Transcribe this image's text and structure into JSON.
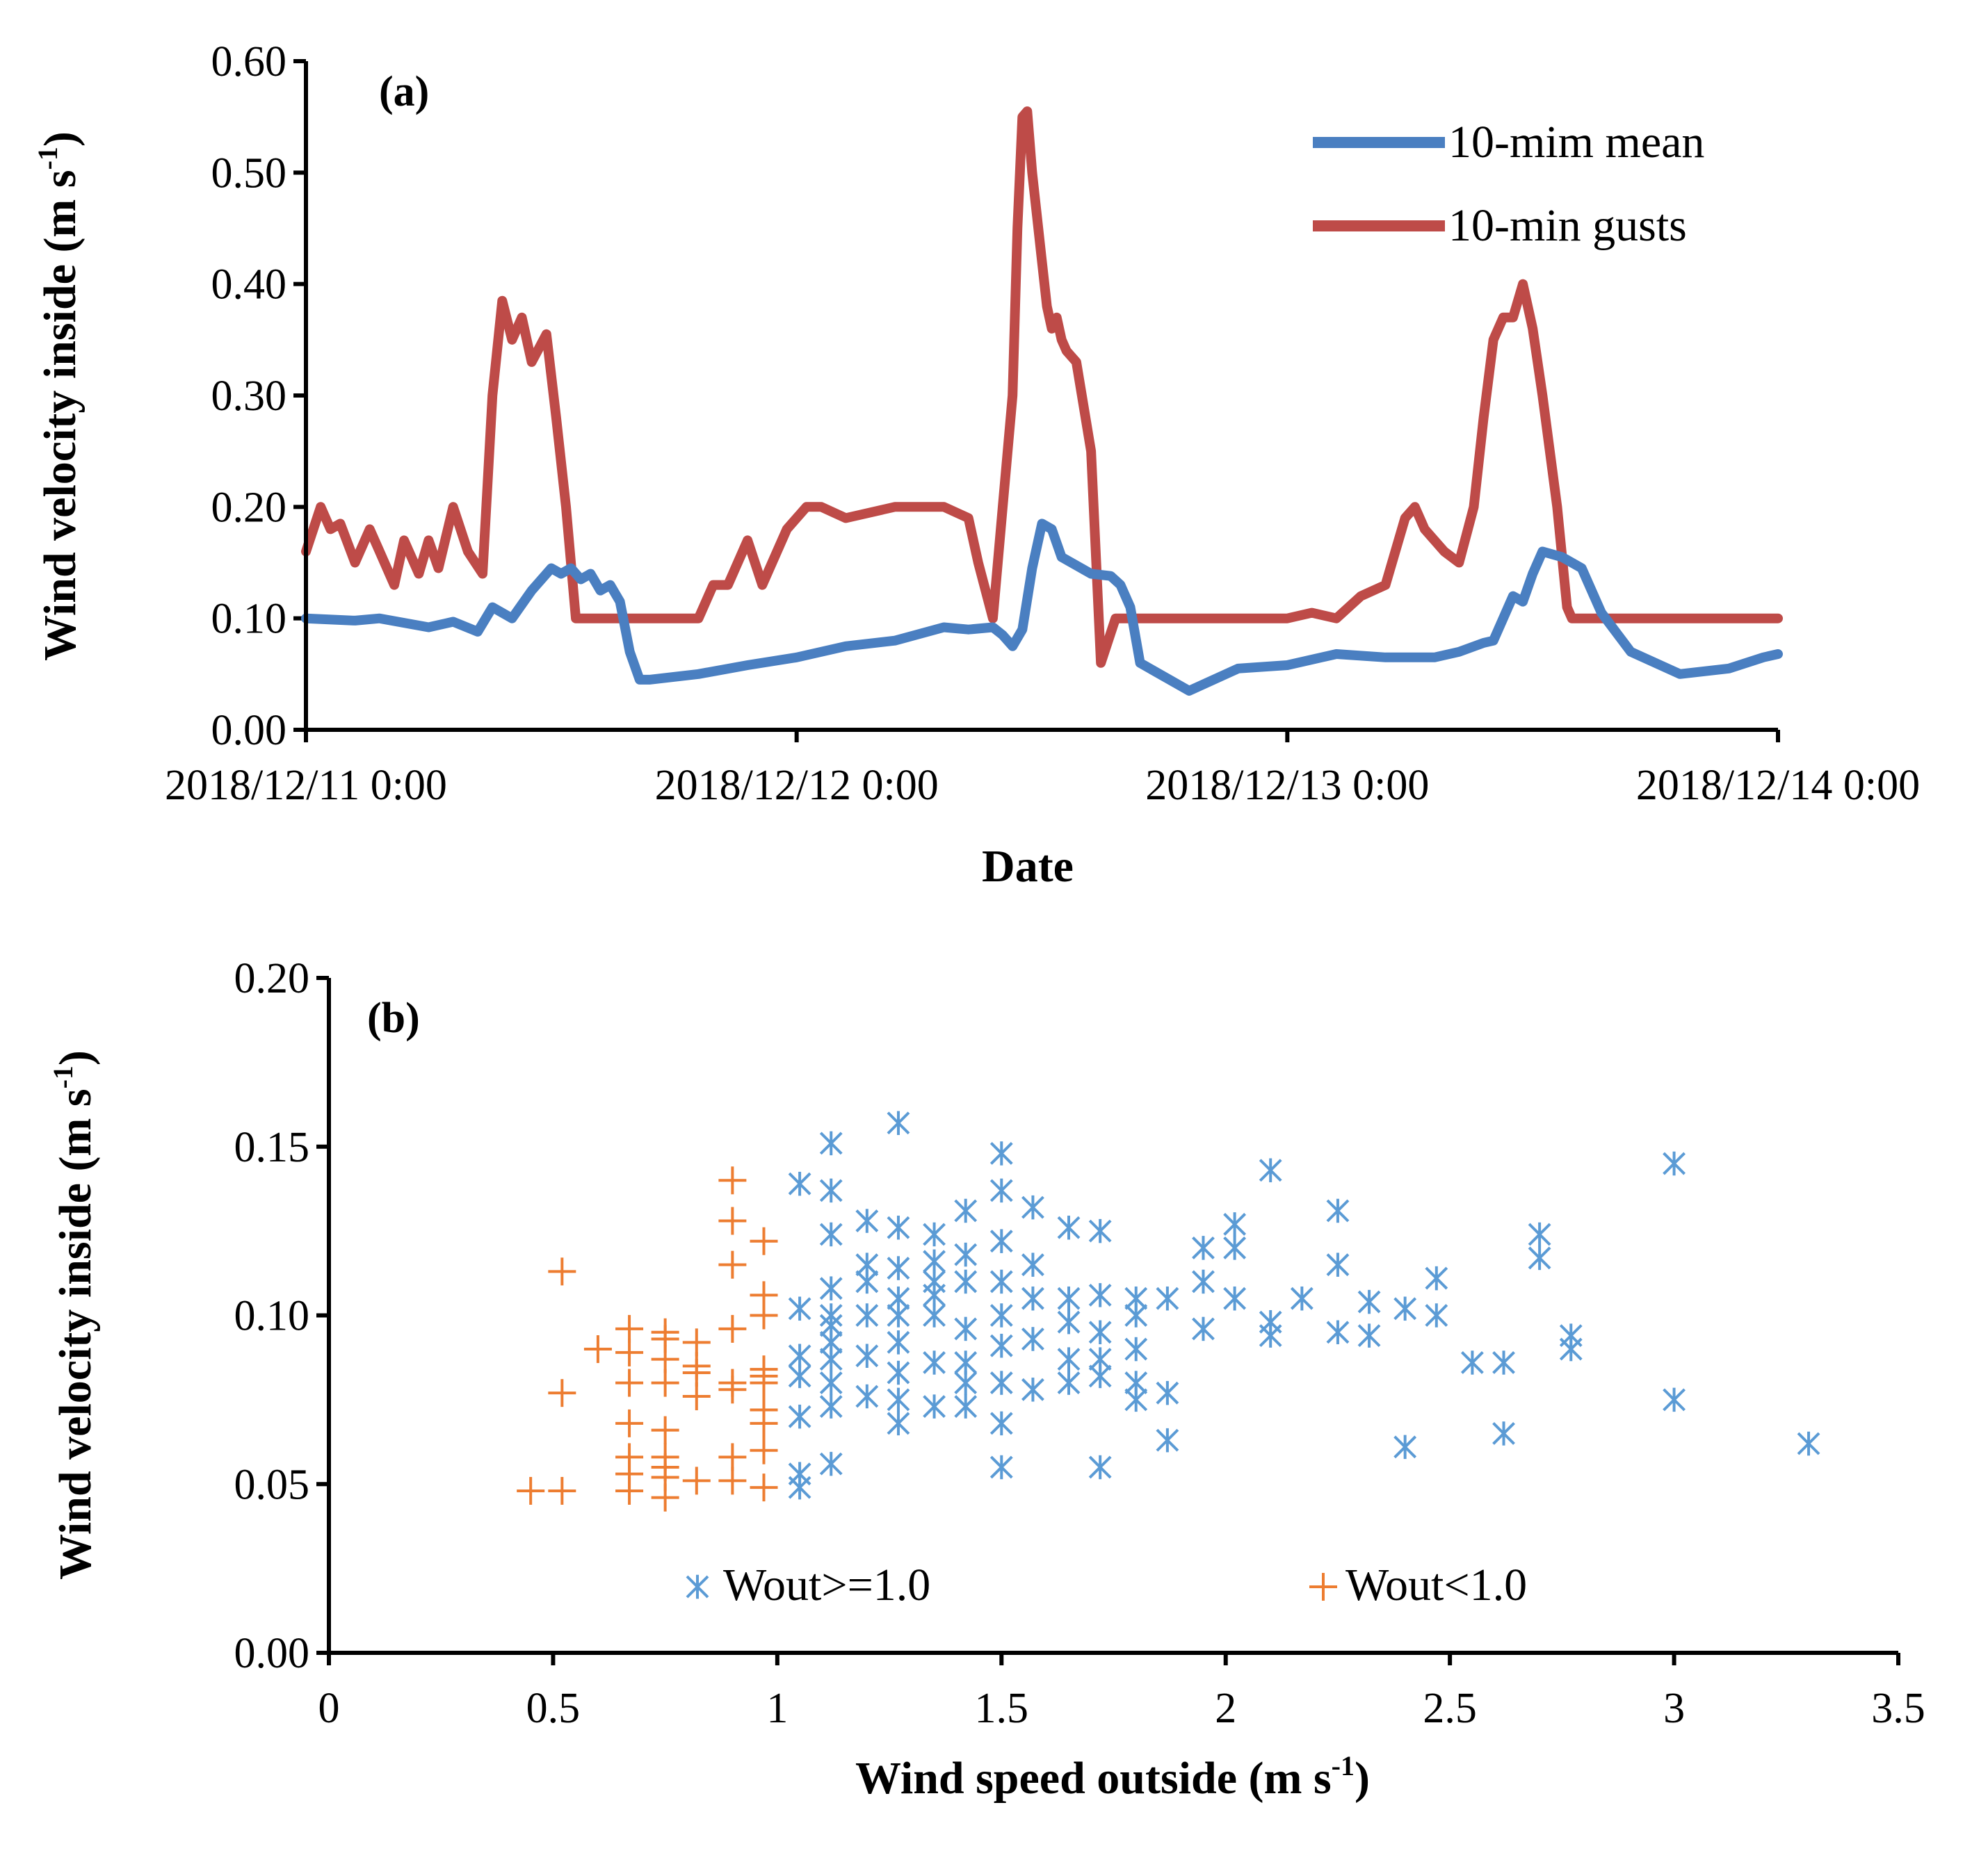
{
  "chart_data": [
    {
      "type": "line",
      "panel_label": "(a)",
      "xlabel": "Date",
      "ylabel": "Wind velocity inside  (m s",
      "ylabel_sup": "-1",
      "ylabel_end": ")",
      "ylim": [
        0,
        0.6
      ],
      "yticks": [
        "0.00",
        "0.10",
        "0.20",
        "0.30",
        "0.40",
        "0.50",
        "0.60"
      ],
      "xlim_days": [
        0,
        3
      ],
      "xticks": [
        "2018/12/11 0:00",
        "2018/12/12 0:00",
        "2018/12/13 0:00",
        "2018/12/14 0:00"
      ],
      "legend_position": "top-right",
      "series": [
        {
          "name": "10-mim mean",
          "color": "#4a7fc1",
          "x_days": [
            0,
            0.1,
            0.15,
            0.2,
            0.25,
            0.3,
            0.35,
            0.38,
            0.42,
            0.46,
            0.5,
            0.52,
            0.54,
            0.56,
            0.58,
            0.6,
            0.62,
            0.64,
            0.66,
            0.68,
            0.7,
            0.8,
            0.9,
            1.0,
            1.1,
            1.2,
            1.3,
            1.35,
            1.4,
            1.42,
            1.44,
            1.46,
            1.48,
            1.5,
            1.52,
            1.54,
            1.6,
            1.64,
            1.66,
            1.68,
            1.7,
            1.8,
            1.9,
            2.0,
            2.1,
            2.2,
            2.3,
            2.35,
            2.4,
            2.42,
            2.46,
            2.48,
            2.5,
            2.52,
            2.56,
            2.6,
            2.64,
            2.7,
            2.8,
            2.9,
            2.97,
            3.0
          ],
          "values": [
            0.1,
            0.098,
            0.1,
            0.096,
            0.092,
            0.097,
            0.088,
            0.11,
            0.1,
            0.125,
            0.145,
            0.14,
            0.145,
            0.135,
            0.14,
            0.125,
            0.13,
            0.115,
            0.07,
            0.045,
            0.045,
            0.05,
            0.058,
            0.065,
            0.075,
            0.08,
            0.092,
            0.09,
            0.092,
            0.085,
            0.075,
            0.09,
            0.145,
            0.185,
            0.18,
            0.155,
            0.14,
            0.138,
            0.13,
            0.11,
            0.06,
            0.035,
            0.055,
            0.058,
            0.068,
            0.065,
            0.065,
            0.07,
            0.078,
            0.08,
            0.12,
            0.115,
            0.14,
            0.16,
            0.155,
            0.145,
            0.105,
            0.07,
            0.05,
            0.055,
            0.065,
            0.068
          ]
        },
        {
          "name": "10-min gusts",
          "color": "#be4b48",
          "x_days": [
            0,
            0.03,
            0.05,
            0.07,
            0.1,
            0.13,
            0.15,
            0.18,
            0.2,
            0.23,
            0.25,
            0.27,
            0.3,
            0.33,
            0.36,
            0.38,
            0.4,
            0.42,
            0.44,
            0.46,
            0.49,
            0.51,
            0.53,
            0.55,
            0.57,
            0.58,
            0.59,
            0.6,
            0.62,
            0.63,
            0.65,
            0.66,
            0.68,
            0.8,
            0.83,
            0.86,
            0.9,
            0.93,
            0.95,
            0.98,
            1.02,
            1.05,
            1.1,
            1.2,
            1.3,
            1.35,
            1.37,
            1.4,
            1.42,
            1.44,
            1.45,
            1.46,
            1.47,
            1.48,
            1.5,
            1.51,
            1.52,
            1.53,
            1.54,
            1.55,
            1.57,
            1.6,
            1.62,
            1.65,
            1.67,
            1.7,
            1.72,
            1.75,
            1.8,
            1.9,
            2.0,
            2.05,
            2.1,
            2.15,
            2.2,
            2.24,
            2.26,
            2.28,
            2.32,
            2.35,
            2.38,
            2.4,
            2.42,
            2.44,
            2.46,
            2.48,
            2.5,
            2.52,
            2.55,
            2.57,
            2.58,
            2.6,
            2.62,
            2.64,
            2.7,
            2.8,
            2.9,
            3.0
          ],
          "values": [
            0.16,
            0.2,
            0.18,
            0.185,
            0.15,
            0.18,
            0.16,
            0.13,
            0.17,
            0.14,
            0.17,
            0.145,
            0.2,
            0.16,
            0.14,
            0.3,
            0.385,
            0.35,
            0.37,
            0.33,
            0.355,
            0.28,
            0.2,
            0.1,
            0.1,
            0.1,
            0.1,
            0.1,
            0.1,
            0.1,
            0.1,
            0.1,
            0.1,
            0.1,
            0.13,
            0.13,
            0.17,
            0.13,
            0.15,
            0.18,
            0.2,
            0.2,
            0.19,
            0.2,
            0.2,
            0.19,
            0.15,
            0.1,
            0.2,
            0.3,
            0.45,
            0.55,
            0.555,
            0.5,
            0.42,
            0.38,
            0.36,
            0.37,
            0.35,
            0.34,
            0.33,
            0.25,
            0.06,
            0.1,
            0.1,
            0.1,
            0.1,
            0.1,
            0.1,
            0.1,
            0.1,
            0.105,
            0.1,
            0.12,
            0.13,
            0.19,
            0.2,
            0.18,
            0.16,
            0.15,
            0.2,
            0.28,
            0.35,
            0.37,
            0.37,
            0.4,
            0.36,
            0.3,
            0.2,
            0.11,
            0.1,
            0.1,
            0.1,
            0.1,
            0.1,
            0.1,
            0.1,
            0.1
          ]
        }
      ]
    },
    {
      "type": "scatter",
      "panel_label": "(b)",
      "xlabel": "Wind speed outside (m s",
      "xlabel_sup": "-1",
      "xlabel_end": ")",
      "ylabel": "Wind velocity inside (m s",
      "ylabel_sup": "-1",
      "ylabel_end": ")",
      "xlim": [
        0,
        3.5
      ],
      "ylim": [
        0,
        0.2
      ],
      "xticks": [
        "0",
        "0.5",
        "1",
        "1.5",
        "2",
        "2.5",
        "3",
        "3.5"
      ],
      "yticks": [
        "0.00",
        "0.05",
        "0.10",
        "0.15",
        "0.20"
      ],
      "legend_position": "bottom-center",
      "series": [
        {
          "name": "Wout>=1.0",
          "marker": "asterisk",
          "color": "#5b9bd5",
          "x": [
            1.05,
            1.05,
            1.05,
            1.05,
            1.05,
            1.05,
            1.05,
            1.12,
            1.12,
            1.12,
            1.12,
            1.12,
            1.12,
            1.12,
            1.12,
            1.12,
            1.12,
            1.12,
            1.2,
            1.2,
            1.2,
            1.2,
            1.2,
            1.2,
            1.27,
            1.27,
            1.27,
            1.27,
            1.27,
            1.27,
            1.27,
            1.27,
            1.27,
            1.35,
            1.35,
            1.35,
            1.35,
            1.35,
            1.35,
            1.35,
            1.42,
            1.42,
            1.42,
            1.42,
            1.42,
            1.42,
            1.42,
            1.5,
            1.5,
            1.5,
            1.5,
            1.5,
            1.5,
            1.5,
            1.5,
            1.5,
            1.57,
            1.57,
            1.57,
            1.57,
            1.57,
            1.65,
            1.65,
            1.65,
            1.65,
            1.65,
            1.72,
            1.72,
            1.72,
            1.72,
            1.72,
            1.72,
            1.8,
            1.8,
            1.8,
            1.8,
            1.8,
            1.87,
            1.87,
            1.87,
            1.95,
            1.95,
            1.95,
            2.02,
            2.02,
            2.02,
            2.1,
            2.1,
            2.1,
            2.17,
            2.25,
            2.25,
            2.25,
            2.32,
            2.32,
            2.4,
            2.4,
            2.47,
            2.47,
            2.55,
            2.62,
            2.62,
            2.7,
            2.7,
            2.77,
            2.77,
            3.0,
            3.0,
            3.3
          ],
          "y": [
            0.139,
            0.102,
            0.088,
            0.082,
            0.07,
            0.053,
            0.049,
            0.151,
            0.137,
            0.124,
            0.108,
            0.097,
            0.087,
            0.08,
            0.073,
            0.056,
            0.1,
            0.092,
            0.128,
            0.115,
            0.1,
            0.088,
            0.076,
            0.11,
            0.157,
            0.126,
            0.114,
            0.1,
            0.092,
            0.083,
            0.075,
            0.068,
            0.105,
            0.124,
            0.116,
            0.106,
            0.1,
            0.086,
            0.073,
            0.11,
            0.131,
            0.118,
            0.11,
            0.096,
            0.086,
            0.073,
            0.08,
            0.148,
            0.137,
            0.122,
            0.11,
            0.1,
            0.091,
            0.08,
            0.068,
            0.055,
            0.132,
            0.115,
            0.105,
            0.093,
            0.078,
            0.126,
            0.105,
            0.098,
            0.087,
            0.08,
            0.125,
            0.106,
            0.095,
            0.087,
            0.082,
            0.055,
            0.105,
            0.1,
            0.09,
            0.08,
            0.075,
            0.105,
            0.077,
            0.063,
            0.12,
            0.11,
            0.096,
            0.127,
            0.12,
            0.105,
            0.143,
            0.098,
            0.094,
            0.105,
            0.131,
            0.115,
            0.095,
            0.104,
            0.094,
            0.102,
            0.061,
            0.111,
            0.1,
            0.086,
            0.086,
            0.065,
            0.124,
            0.117,
            0.094,
            0.09,
            0.145,
            0.075,
            0.062
          ]
        },
        {
          "name": "Wout<1.0",
          "marker": "plus",
          "color": "#ed7d31",
          "x": [
            0.45,
            0.52,
            0.52,
            0.52,
            0.6,
            0.67,
            0.67,
            0.67,
            0.67,
            0.67,
            0.67,
            0.67,
            0.75,
            0.75,
            0.75,
            0.75,
            0.75,
            0.75,
            0.75,
            0.75,
            0.75,
            0.82,
            0.82,
            0.82,
            0.82,
            0.82,
            0.9,
            0.9,
            0.9,
            0.9,
            0.9,
            0.9,
            0.9,
            0.9,
            0.97,
            0.97,
            0.97,
            0.97,
            0.97,
            0.97,
            0.97,
            0.97,
            0.97,
            0.97
          ],
          "y": [
            0.048,
            0.113,
            0.077,
            0.048,
            0.09,
            0.096,
            0.089,
            0.08,
            0.068,
            0.058,
            0.053,
            0.048,
            0.095,
            0.093,
            0.087,
            0.08,
            0.066,
            0.058,
            0.055,
            0.052,
            0.046,
            0.092,
            0.085,
            0.083,
            0.076,
            0.051,
            0.14,
            0.128,
            0.115,
            0.096,
            0.08,
            0.078,
            0.058,
            0.051,
            0.122,
            0.106,
            0.1,
            0.084,
            0.082,
            0.08,
            0.072,
            0.068,
            0.06,
            0.049
          ]
        }
      ]
    }
  ]
}
